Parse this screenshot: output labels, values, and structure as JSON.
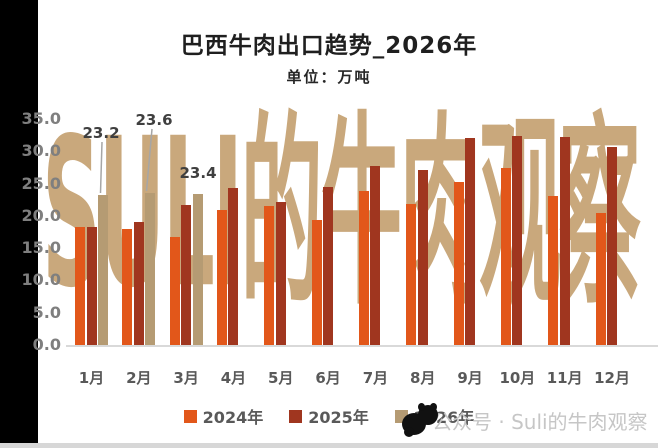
{
  "title": "巴西牛肉出口趋势_2026年",
  "subtitle": "单位：万吨",
  "watermark": {
    "big_text": "SULI的牛肉观察",
    "footer_text": "公众号 · Suli的牛肉观察",
    "color": "#c9a87c"
  },
  "chart_data": {
    "type": "bar",
    "title": "巴西牛肉出口趋势_2026年",
    "subtitle": "单位：万吨",
    "ylabel": "万吨",
    "ylim": [
      0,
      35
    ],
    "ytick_step": 5,
    "yticks": [
      "0.0",
      "5.0",
      "10.0",
      "15.0",
      "20.0",
      "25.0",
      "30.0",
      "35.0"
    ],
    "grid": false,
    "legend_position": "bottom",
    "categories": [
      "1月",
      "2月",
      "3月",
      "4月",
      "5月",
      "6月",
      "7月",
      "8月",
      "9月",
      "10月",
      "11月",
      "12月"
    ],
    "series": [
      {
        "name": "2024年",
        "color": "#e2571a",
        "values": [
          18.3,
          17.9,
          16.8,
          20.9,
          21.5,
          19.4,
          23.8,
          21.8,
          25.3,
          27.4,
          23.0,
          20.4
        ]
      },
      {
        "name": "2025年",
        "color": "#a0361f",
        "values": [
          18.3,
          19.1,
          21.7,
          24.3,
          22.1,
          24.4,
          27.7,
          27.1,
          32.0,
          32.4,
          32.2,
          30.7
        ]
      },
      {
        "name": "2026年",
        "color": "#b59b73",
        "values": [
          23.2,
          23.6,
          23.4,
          null,
          null,
          null,
          null,
          null,
          null,
          null,
          null,
          null
        ]
      }
    ],
    "data_labels": [
      {
        "category": "1月",
        "series": "2026年",
        "text": "23.2"
      },
      {
        "category": "2月",
        "series": "2026年",
        "text": "23.6"
      },
      {
        "category": "3月",
        "series": "2026年",
        "text": "23.4"
      }
    ]
  },
  "colors": {
    "axis_line": "#d9d9d9",
    "tick_text": "#7f7f7f",
    "label_text": "#595959",
    "data_label_text": "#3f3f3f",
    "leader_line": "#a6a6a6"
  }
}
